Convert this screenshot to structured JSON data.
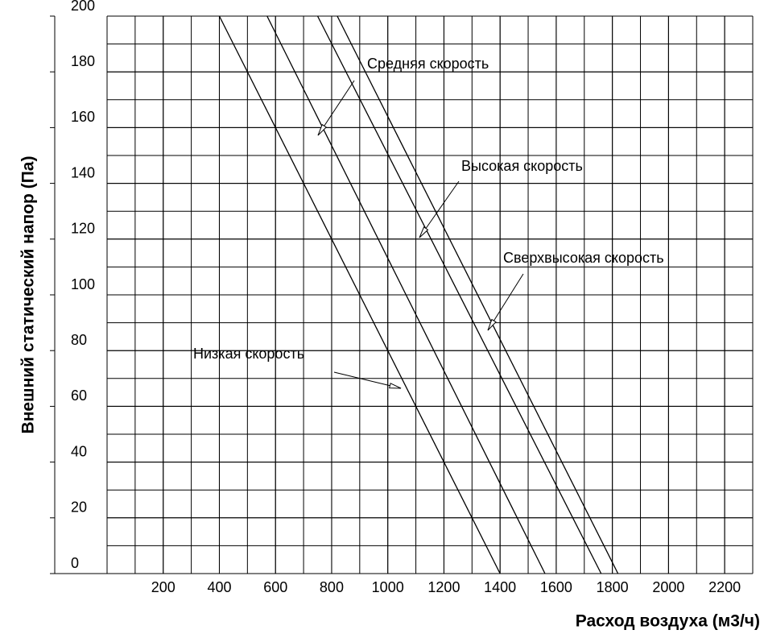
{
  "chart_data": {
    "type": "line",
    "xlabel": "Расход воздуха (м3/ч)",
    "ylabel": "Внешний статический напор (Па)",
    "series": [
      {
        "name": "Низкая скорость",
        "color": "#000000",
        "x": [
          400,
          1400
        ],
        "values": [
          200,
          0
        ]
      },
      {
        "name": "Средняя скорость",
        "color": "#000000",
        "x": [
          570,
          1560
        ],
        "values": [
          200,
          0
        ]
      },
      {
        "name": "Высокая скорость",
        "color": "#000000",
        "x": [
          750,
          1760
        ],
        "values": [
          200,
          0
        ]
      },
      {
        "name": "Сверхвысокая скорость",
        "color": "#000000",
        "x": [
          820,
          1820
        ],
        "values": [
          200,
          0
        ]
      }
    ],
    "xlim": [
      0,
      2300
    ],
    "xticks": [
      200,
      400,
      600,
      800,
      1000,
      1200,
      1400,
      1600,
      1800,
      2000,
      2200
    ],
    "ylim": [
      0,
      200
    ],
    "yticks": [
      0,
      20,
      40,
      60,
      80,
      100,
      120,
      140,
      160,
      180,
      200
    ],
    "grid": true
  }
}
